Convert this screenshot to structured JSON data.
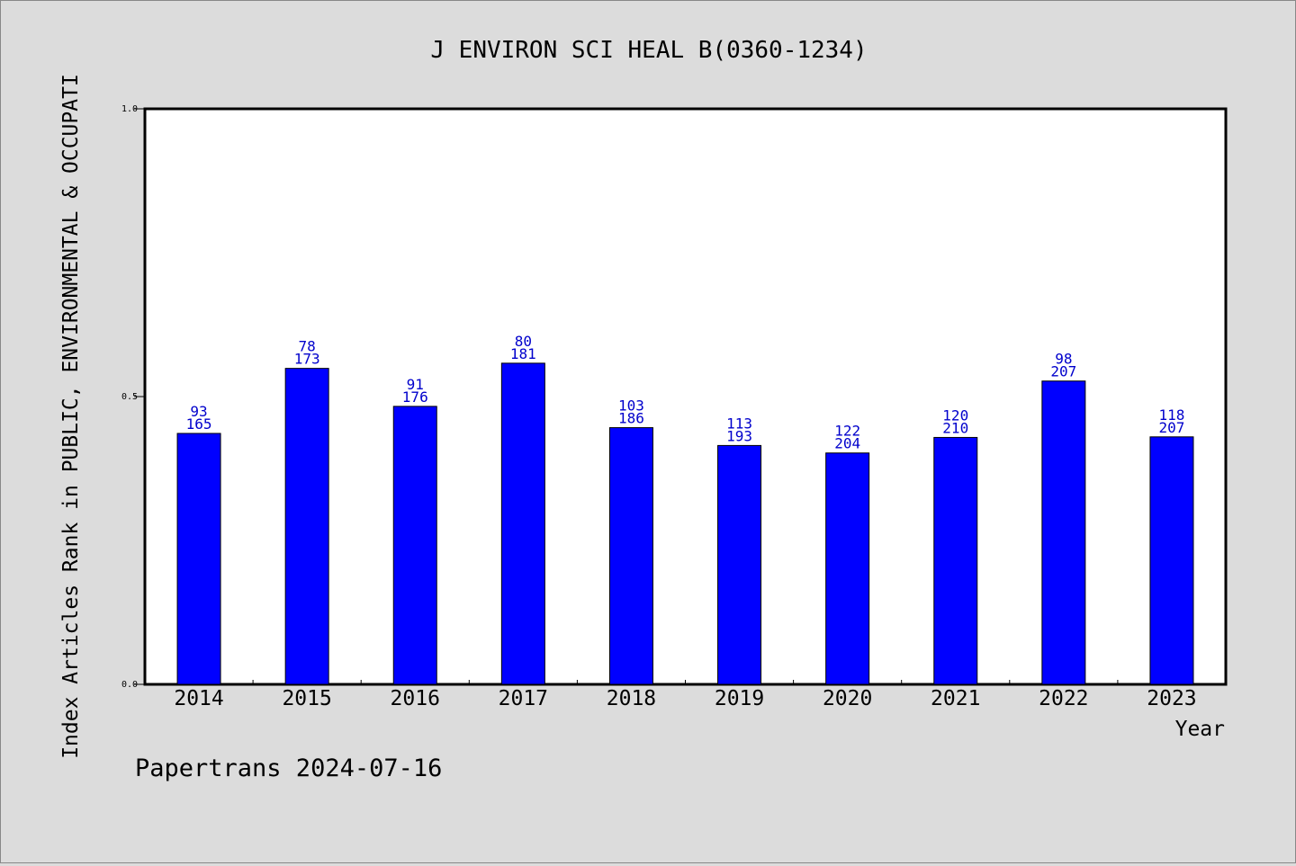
{
  "chart_data": {
    "type": "bar",
    "title": "J ENVIRON SCI HEAL B(0360-1234)",
    "xlabel": "Year",
    "ylabel": "Index Articles Rank in PUBLIC, ENVIRONMENTAL & OCCUPATI",
    "footer": "Papertrans 2024-07-16",
    "ylim": [
      0,
      1
    ],
    "yticks": [
      "0.0",
      "0.5",
      "1.0"
    ],
    "categories": [
      "2014",
      "2015",
      "2016",
      "2017",
      "2018",
      "2019",
      "2020",
      "2021",
      "2022",
      "2023"
    ],
    "values": [
      0.436,
      0.549,
      0.483,
      0.558,
      0.446,
      0.415,
      0.402,
      0.429,
      0.527,
      0.43
    ],
    "rank_labels": [
      "93",
      "78",
      "91",
      "80",
      "103",
      "113",
      "122",
      "120",
      "98",
      "118"
    ],
    "total_labels": [
      "165",
      "173",
      "176",
      "181",
      "186",
      "193",
      "204",
      "210",
      "207",
      "207"
    ],
    "grid": false,
    "colors": {
      "bar": "#0000ff",
      "label": "#0000cc",
      "background": "#dcdcdc",
      "plot_background": "#ffffff",
      "axis": "#000000"
    }
  }
}
